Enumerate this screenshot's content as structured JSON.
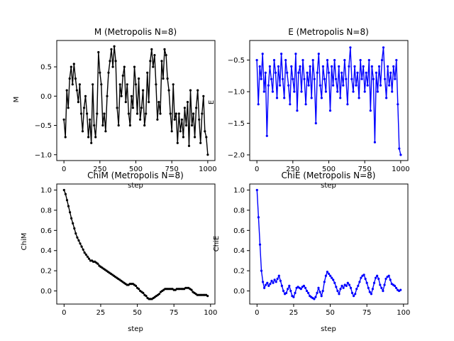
{
  "chart_data": [
    {
      "type": "line",
      "title": "M (Metropolis N=8)",
      "xlabel": "step",
      "ylabel": "M",
      "xlim": [
        -50,
        1050
      ],
      "ylim": [
        -1.1,
        0.95
      ],
      "xticks": [
        0,
        250,
        500,
        750,
        1000
      ],
      "xtick_labels": [
        "0",
        "250",
        "500",
        "750",
        "1000"
      ],
      "yticks": [
        -1.0,
        -0.5,
        0.0,
        0.5
      ],
      "ytick_labels": [
        "−1.0",
        "−0.5",
        "0.0",
        "0.5"
      ],
      "color": "#000000",
      "series": [
        {
          "x": [
            0,
            10,
            20,
            30,
            40,
            50,
            60,
            70,
            80,
            90,
            100,
            110,
            120,
            130,
            140,
            150,
            160,
            170,
            180,
            190,
            200,
            210,
            220,
            230,
            240,
            250,
            260,
            270,
            280,
            290,
            300,
            310,
            320,
            330,
            340,
            350,
            360,
            370,
            380,
            390,
            400,
            410,
            420,
            430,
            440,
            450,
            460,
            470,
            480,
            490,
            500,
            510,
            520,
            530,
            540,
            550,
            560,
            570,
            580,
            590,
            600,
            610,
            620,
            630,
            640,
            650,
            660,
            670,
            680,
            690,
            700,
            710,
            720,
            730,
            740,
            750,
            760,
            770,
            780,
            790,
            800,
            810,
            820,
            830,
            840,
            850,
            860,
            870,
            880,
            890,
            900,
            910,
            920,
            930,
            940,
            950,
            960,
            970,
            980,
            990,
            1000
          ],
          "values": [
            -0.4,
            -0.7,
            0.1,
            -0.2,
            0.3,
            0.5,
            0.2,
            0.55,
            0.3,
            0.1,
            -0.1,
            0.2,
            -0.3,
            -0.6,
            -0.2,
            0.0,
            -0.3,
            -0.7,
            -0.4,
            -0.8,
            0.2,
            -0.5,
            -0.7,
            -0.3,
            0.75,
            0.4,
            0.2,
            -0.5,
            -0.3,
            -0.6,
            0.0,
            0.4,
            0.6,
            0.8,
            0.5,
            0.85,
            0.6,
            -0.2,
            -0.5,
            0.2,
            0.0,
            0.35,
            0.5,
            -0.1,
            0.2,
            -0.3,
            -0.5,
            0.0,
            -0.2,
            0.5,
            0.2,
            -0.3,
            0.3,
            -0.4,
            -0.2,
            0.1,
            -0.5,
            -0.3,
            0.4,
            -0.1,
            0.6,
            0.8,
            0.5,
            0.7,
            0.2,
            -0.4,
            -0.1,
            -0.3,
            0.6,
            0.3,
            0.8,
            0.7,
            0.3,
            0.1,
            -0.3,
            -0.6,
            0.2,
            -0.4,
            -0.3,
            -0.8,
            -0.3,
            -0.6,
            -0.4,
            -0.7,
            -0.2,
            -0.5,
            -0.1,
            -0.85,
            0.1,
            -0.5,
            -0.3,
            -0.7,
            -0.2,
            0.1,
            -0.4,
            -0.8,
            -0.3,
            0.0,
            -0.6,
            -0.7,
            -1.0
          ]
        }
      ]
    },
    {
      "type": "line",
      "title": "E (Metropolis N=8)",
      "xlabel": "step",
      "ylabel": "E",
      "xlim": [
        -50,
        1050
      ],
      "ylim": [
        -2.09,
        -0.19
      ],
      "xticks": [
        0,
        250,
        500,
        750,
        1000
      ],
      "xtick_labels": [
        "0",
        "250",
        "500",
        "750",
        "1000"
      ],
      "yticks": [
        -2.0,
        -1.5,
        -1.0,
        -0.5
      ],
      "ytick_labels": [
        "−2.0",
        "−1.5",
        "−1.0",
        "−0.5"
      ],
      "color": "#0000ff",
      "series": [
        {
          "x": [
            0,
            10,
            20,
            30,
            40,
            50,
            60,
            70,
            80,
            90,
            100,
            110,
            120,
            130,
            140,
            150,
            160,
            170,
            180,
            190,
            200,
            210,
            220,
            230,
            240,
            250,
            260,
            270,
            280,
            290,
            300,
            310,
            320,
            330,
            340,
            350,
            360,
            370,
            380,
            390,
            400,
            410,
            420,
            430,
            440,
            450,
            460,
            470,
            480,
            490,
            500,
            510,
            520,
            530,
            540,
            550,
            560,
            570,
            580,
            590,
            600,
            610,
            620,
            630,
            640,
            650,
            660,
            670,
            680,
            690,
            700,
            710,
            720,
            730,
            740,
            750,
            760,
            770,
            780,
            790,
            800,
            810,
            820,
            830,
            840,
            850,
            860,
            870,
            880,
            890,
            900,
            910,
            920,
            930,
            940,
            950,
            960,
            970,
            980,
            990,
            1000
          ],
          "values": [
            -0.5,
            -1.2,
            -0.6,
            -0.8,
            -0.4,
            -1.0,
            -0.7,
            -1.7,
            -0.9,
            -0.6,
            -0.8,
            -1.0,
            -0.5,
            -0.7,
            -1.1,
            -0.6,
            -0.9,
            -0.4,
            -0.8,
            -1.1,
            -0.5,
            -0.7,
            -0.9,
            -1.2,
            -0.6,
            -0.8,
            -1.0,
            -0.4,
            -1.3,
            -0.7,
            -0.6,
            -1.0,
            -0.5,
            -0.8,
            -1.2,
            -0.7,
            -0.9,
            -0.6,
            -1.1,
            -0.5,
            -0.8,
            -1.5,
            -0.7,
            -0.4,
            -0.9,
            -1.1,
            -0.6,
            -0.8,
            -1.0,
            -0.5,
            -0.7,
            -1.3,
            -0.6,
            -0.9,
            -0.5,
            -0.8,
            -1.0,
            -0.6,
            -1.1,
            -0.7,
            -0.9,
            -0.5,
            -0.8,
            -1.2,
            -0.6,
            -0.3,
            -0.8,
            -1.0,
            -0.6,
            -0.9,
            -0.7,
            -1.1,
            -0.5,
            -0.8,
            -0.6,
            -1.0,
            -0.7,
            -0.9,
            -0.5,
            -1.3,
            -0.6,
            -0.8,
            -1.8,
            -0.7,
            -1.0,
            -0.6,
            -0.9,
            -0.5,
            -0.3,
            -0.8,
            -1.1,
            -0.6,
            -0.9,
            -0.7,
            -1.0,
            -0.6,
            -0.8,
            -0.5,
            -1.2,
            -1.9,
            -2.0
          ]
        }
      ]
    },
    {
      "type": "line",
      "title": "ChiM (Metropolis N=8)",
      "xlabel": "step",
      "ylabel": "ChiM",
      "xlim": [
        -5,
        103
      ],
      "ylim": [
        -0.13,
        1.06
      ],
      "xticks": [
        0,
        25,
        50,
        75,
        100
      ],
      "xtick_labels": [
        "0",
        "25",
        "50",
        "75",
        "100"
      ],
      "yticks": [
        0.0,
        0.2,
        0.4,
        0.6,
        0.8,
        1.0
      ],
      "ytick_labels": [
        "0.0",
        "0.2",
        "0.4",
        "0.6",
        "0.8",
        "1.0"
      ],
      "color": "#000000",
      "series": [
        {
          "x": [
            0,
            1,
            2,
            3,
            4,
            5,
            6,
            7,
            8,
            9,
            10,
            11,
            12,
            13,
            14,
            15,
            16,
            17,
            18,
            19,
            20,
            21,
            22,
            23,
            24,
            25,
            26,
            27,
            28,
            29,
            30,
            31,
            32,
            33,
            34,
            35,
            36,
            37,
            38,
            39,
            40,
            41,
            42,
            43,
            44,
            45,
            46,
            47,
            48,
            49,
            50,
            51,
            52,
            53,
            54,
            55,
            56,
            57,
            58,
            59,
            60,
            61,
            62,
            63,
            64,
            65,
            66,
            67,
            68,
            69,
            70,
            71,
            72,
            73,
            74,
            75,
            76,
            77,
            78,
            79,
            80,
            81,
            82,
            83,
            84,
            85,
            86,
            87,
            88,
            89,
            90,
            91,
            92,
            93,
            94,
            95,
            96,
            97,
            98
          ],
          "values": [
            1.0,
            0.96,
            0.9,
            0.84,
            0.78,
            0.72,
            0.67,
            0.62,
            0.57,
            0.53,
            0.5,
            0.47,
            0.44,
            0.41,
            0.38,
            0.36,
            0.34,
            0.32,
            0.3,
            0.3,
            0.29,
            0.29,
            0.28,
            0.27,
            0.25,
            0.24,
            0.23,
            0.22,
            0.21,
            0.2,
            0.19,
            0.18,
            0.17,
            0.16,
            0.15,
            0.14,
            0.13,
            0.12,
            0.11,
            0.1,
            0.09,
            0.08,
            0.07,
            0.06,
            0.06,
            0.07,
            0.07,
            0.07,
            0.06,
            0.05,
            0.03,
            0.02,
            0.0,
            -0.01,
            -0.02,
            -0.04,
            -0.05,
            -0.07,
            -0.08,
            -0.08,
            -0.08,
            -0.07,
            -0.06,
            -0.05,
            -0.04,
            -0.03,
            -0.01,
            0.0,
            0.01,
            0.02,
            0.02,
            0.02,
            0.02,
            0.02,
            0.02,
            0.01,
            0.01,
            0.02,
            0.02,
            0.02,
            0.02,
            0.02,
            0.02,
            0.03,
            0.03,
            0.03,
            0.02,
            0.01,
            -0.01,
            -0.02,
            -0.03,
            -0.04,
            -0.04,
            -0.04,
            -0.04,
            -0.04,
            -0.04,
            -0.04,
            -0.05
          ]
        }
      ]
    },
    {
      "type": "line",
      "title": "ChiE (Metropolis N=8)",
      "xlabel": "step",
      "ylabel": "ChiE",
      "xlim": [
        -5,
        103
      ],
      "ylim": [
        -0.13,
        1.06
      ],
      "xticks": [
        0,
        25,
        50,
        75,
        100
      ],
      "xtick_labels": [
        "0",
        "25",
        "50",
        "75",
        "100"
      ],
      "yticks": [
        0.0,
        0.2,
        0.4,
        0.6,
        0.8,
        1.0
      ],
      "ytick_labels": [
        "0.0",
        "0.2",
        "0.4",
        "0.6",
        "0.8",
        "1.0"
      ],
      "color": "#0000ff",
      "series": [
        {
          "x": [
            0,
            1,
            2,
            3,
            4,
            5,
            6,
            7,
            8,
            9,
            10,
            11,
            12,
            13,
            14,
            15,
            16,
            17,
            18,
            19,
            20,
            21,
            22,
            23,
            24,
            25,
            26,
            27,
            28,
            29,
            30,
            31,
            32,
            33,
            34,
            35,
            36,
            37,
            38,
            39,
            40,
            41,
            42,
            43,
            44,
            45,
            46,
            47,
            48,
            49,
            50,
            51,
            52,
            53,
            54,
            55,
            56,
            57,
            58,
            59,
            60,
            61,
            62,
            63,
            64,
            65,
            66,
            67,
            68,
            69,
            70,
            71,
            72,
            73,
            74,
            75,
            76,
            77,
            78,
            79,
            80,
            81,
            82,
            83,
            84,
            85,
            86,
            87,
            88,
            89,
            90,
            91,
            92,
            93,
            94,
            95,
            96,
            97,
            98
          ],
          "values": [
            1.0,
            0.73,
            0.46,
            0.2,
            0.09,
            0.03,
            0.06,
            0.08,
            0.05,
            0.07,
            0.1,
            0.08,
            0.11,
            0.09,
            0.12,
            0.15,
            0.1,
            0.05,
            0.0,
            -0.03,
            -0.02,
            0.02,
            0.05,
            0.0,
            -0.05,
            -0.06,
            -0.02,
            0.03,
            0.04,
            0.03,
            0.02,
            0.04,
            0.05,
            0.03,
            0.0,
            -0.02,
            -0.05,
            -0.06,
            -0.07,
            -0.08,
            -0.06,
            -0.02,
            0.03,
            -0.01,
            -0.05,
            0.0,
            0.09,
            0.15,
            0.19,
            0.17,
            0.15,
            0.13,
            0.11,
            0.08,
            0.04,
            0.0,
            -0.03,
            0.02,
            0.05,
            0.03,
            0.06,
            0.05,
            0.08,
            0.06,
            0.03,
            -0.02,
            -0.05,
            -0.03,
            0.02,
            0.05,
            0.09,
            0.13,
            0.15,
            0.16,
            0.12,
            0.08,
            0.03,
            -0.01,
            -0.03,
            0.02,
            0.08,
            0.13,
            0.15,
            0.12,
            0.06,
            0.03,
            0.0,
            0.06,
            0.12,
            0.14,
            0.15,
            0.11,
            0.07,
            0.06,
            0.05,
            0.03,
            0.01,
            0.0,
            0.01
          ]
        }
      ]
    }
  ]
}
